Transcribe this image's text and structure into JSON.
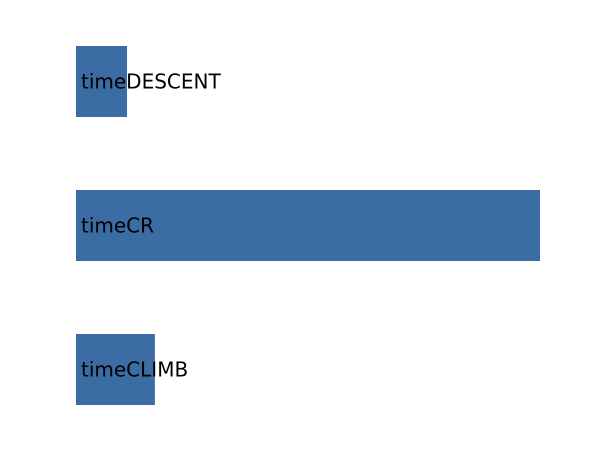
{
  "chart_data": {
    "type": "bar",
    "orientation": "horizontal",
    "categories": [
      "timeDESCENT",
      "timeCR",
      "timeCLIMB"
    ],
    "values": [
      11,
      100,
      17
    ],
    "xlim": [
      0,
      100
    ],
    "grid": false,
    "axes_visible": false,
    "bar_color": "#3c6ca4",
    "label_placement": "inside-left"
  }
}
